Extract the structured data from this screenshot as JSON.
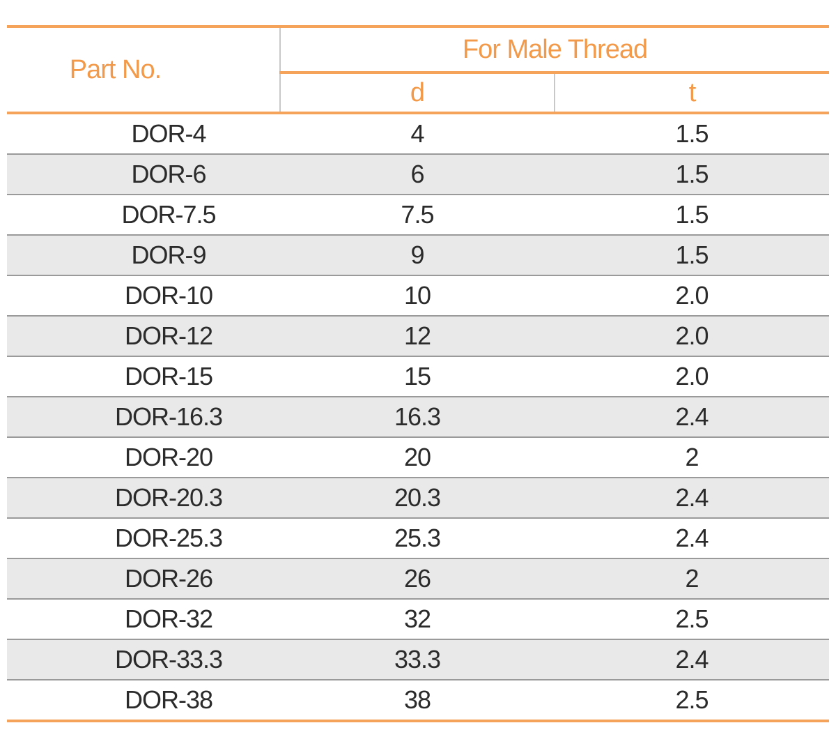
{
  "table": {
    "header": {
      "part_no": "Part No.",
      "group": "For Male Thread",
      "col_d": "d",
      "col_t": "t"
    },
    "rows": [
      {
        "part": "DOR-4",
        "d": "4",
        "t": "1.5"
      },
      {
        "part": "DOR-6",
        "d": "6",
        "t": "1.5"
      },
      {
        "part": "DOR-7.5",
        "d": "7.5",
        "t": "1.5"
      },
      {
        "part": "DOR-9",
        "d": "9",
        "t": "1.5"
      },
      {
        "part": "DOR-10",
        "d": "10",
        "t": "2.0"
      },
      {
        "part": "DOR-12",
        "d": "12",
        "t": "2.0"
      },
      {
        "part": "DOR-15",
        "d": "15",
        "t": "2.0"
      },
      {
        "part": "DOR-16.3",
        "d": "16.3",
        "t": "2.4"
      },
      {
        "part": "DOR-20",
        "d": "20",
        "t": "2"
      },
      {
        "part": "DOR-20.3",
        "d": "20.3",
        "t": "2.4"
      },
      {
        "part": "DOR-25.3",
        "d": "25.3",
        "t": "2.4"
      },
      {
        "part": "DOR-26",
        "d": "26",
        "t": "2"
      },
      {
        "part": "DOR-32",
        "d": "32",
        "t": "2.5"
      },
      {
        "part": "DOR-33.3",
        "d": "33.3",
        "t": "2.4"
      },
      {
        "part": "DOR-38",
        "d": "38",
        "t": "2.5"
      }
    ]
  },
  "colors": {
    "accent": "#f5a35a",
    "header_text": "#f29a4a",
    "stripe": "#e9e9e9",
    "body_text": "#2b2b2b"
  }
}
